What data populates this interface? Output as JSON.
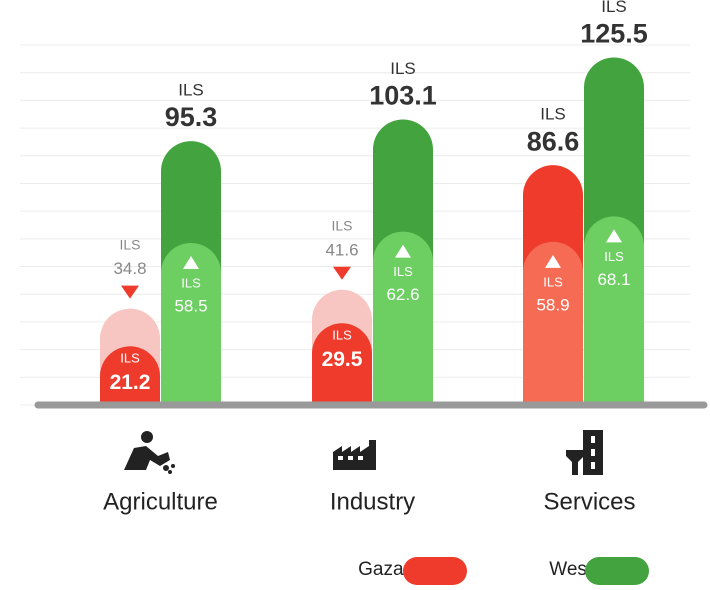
{
  "chart_data": {
    "type": "bar",
    "unit": "ILS",
    "categories": [
      "Agriculture",
      "Industry",
      "Services"
    ],
    "series": [
      {
        "name": "Gaza Strip",
        "color": "#ee3b2b",
        "values": [
          34.8,
          41.6,
          86.6
        ],
        "inner_values": [
          21.2,
          29.5,
          58.9
        ],
        "outer_colors": [
          "#f7c5c2",
          "#f7c5c2",
          "#ee3b2b"
        ],
        "inner_colors": [
          "#ee3b2b",
          "#ee3b2b",
          "#f66b53"
        ],
        "arrows": [
          "down",
          "down",
          "up"
        ]
      },
      {
        "name": "West Bank",
        "color": "#43a33e",
        "values": [
          95.3,
          103.1,
          125.5
        ],
        "inner_values": [
          58.5,
          62.6,
          68.1
        ],
        "outer_colors": [
          "#43a33e",
          "#43a33e",
          "#43a33e"
        ],
        "inner_colors": [
          "#6dce62",
          "#6dce62",
          "#6dce62"
        ],
        "arrows": [
          "up",
          "up",
          "up"
        ]
      }
    ],
    "ylim": [
      0,
      130
    ],
    "yticks": [
      0,
      10,
      20,
      30,
      40,
      50,
      60,
      70,
      80,
      90,
      100,
      110,
      120,
      130
    ],
    "grid": true
  }
}
